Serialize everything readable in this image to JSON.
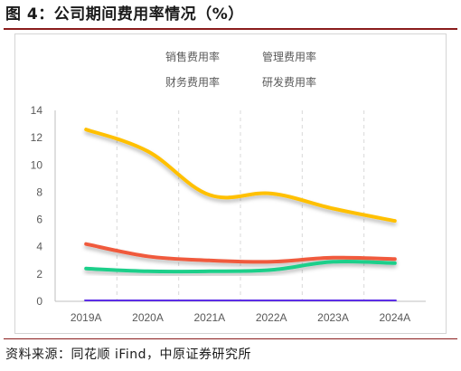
{
  "header": {
    "title": "图 4：公司期间费用率情况（%）"
  },
  "footer": {
    "source": "资料来源：同花顺 iFind，中原证券研究所"
  },
  "chart_data": {
    "type": "line",
    "smooth": true,
    "categories": [
      "2019A",
      "2020A",
      "2021A",
      "2022A",
      "2023A",
      "2024A"
    ],
    "series": [
      {
        "name": "销售费用率",
        "color": "#5b2ee6",
        "values": [
          0.1,
          0.08,
          0.07,
          0.06,
          0.05,
          0.05
        ]
      },
      {
        "name": "管理费用率",
        "color": "#f05a3c",
        "values": [
          4.2,
          3.3,
          3.0,
          2.9,
          3.2,
          3.1
        ]
      },
      {
        "name": "财务费用率",
        "color": "#ffc000",
        "values": [
          12.6,
          11.0,
          7.8,
          7.9,
          6.8,
          5.9
        ]
      },
      {
        "name": "研发费用率",
        "color": "#1ecf8a",
        "values": [
          2.4,
          2.2,
          2.2,
          2.3,
          2.9,
          2.8
        ]
      }
    ],
    "ylim": [
      0,
      14
    ],
    "yticks": [
      0,
      2,
      4,
      6,
      8,
      10,
      12,
      14
    ],
    "xlabel": "",
    "ylabel": "",
    "grid": "vertical-dashed",
    "legend": "top-center"
  }
}
